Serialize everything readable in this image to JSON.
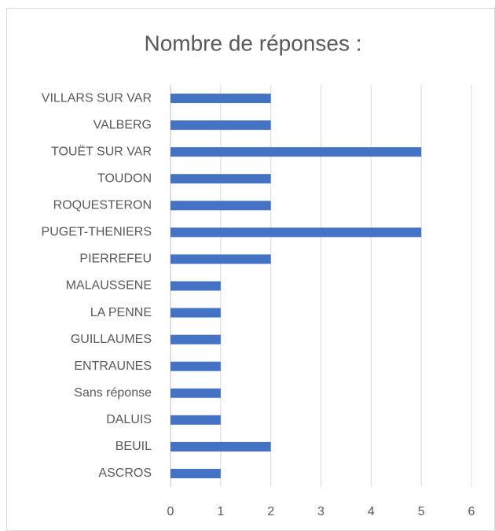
{
  "chart_data": {
    "type": "bar",
    "orientation": "horizontal",
    "title": "Nombre de réponses :",
    "categories": [
      "VILLARS SUR VAR",
      "VALBERG",
      "TOUËT SUR VAR",
      "TOUDON",
      "ROQUESTERON",
      "PUGET-THENIERS",
      "PIERREFEU",
      "MALAUSSENE",
      "LA PENNE",
      "GUILLAUMES",
      "ENTRAUNES",
      "Sans réponse",
      "DALUIS",
      "BEUIL",
      "ASCROS"
    ],
    "values": [
      2,
      2,
      5,
      2,
      2,
      5,
      2,
      1,
      1,
      1,
      1,
      1,
      1,
      2,
      1
    ],
    "color": "#4472c4",
    "xlim": [
      0,
      6
    ],
    "xticks": [
      0,
      1,
      2,
      3,
      4,
      5,
      6
    ],
    "grid": true
  }
}
